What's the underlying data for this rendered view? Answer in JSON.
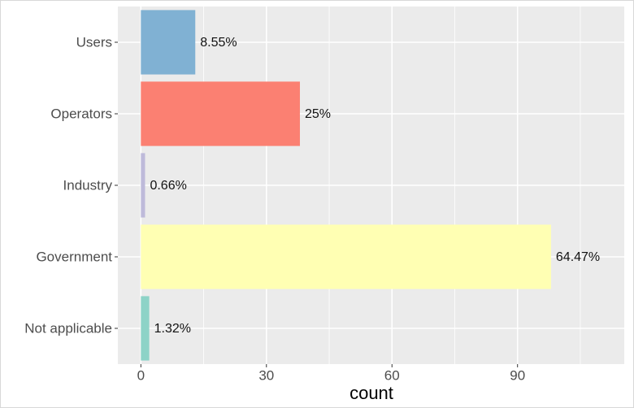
{
  "chart_data": {
    "type": "bar",
    "orientation": "horizontal",
    "x_label": "count",
    "categories": [
      "Users",
      "Operators",
      "Industry",
      "Government",
      "Not applicable"
    ],
    "values": [
      13,
      38,
      1,
      98,
      2
    ],
    "bar_labels": [
      "8.55%",
      "25%",
      "0.66%",
      "64.47%",
      "1.32%"
    ],
    "colors": [
      "#80b1d3",
      "#fb8072",
      "#bebada",
      "#ffffb3",
      "#8dd3c7"
    ],
    "xlim": [
      -5.5,
      115.5
    ],
    "xticks": [
      0,
      30,
      60,
      90
    ],
    "xminor": [
      15,
      45,
      75,
      105
    ],
    "grid": true,
    "background": "#ebebeb"
  }
}
